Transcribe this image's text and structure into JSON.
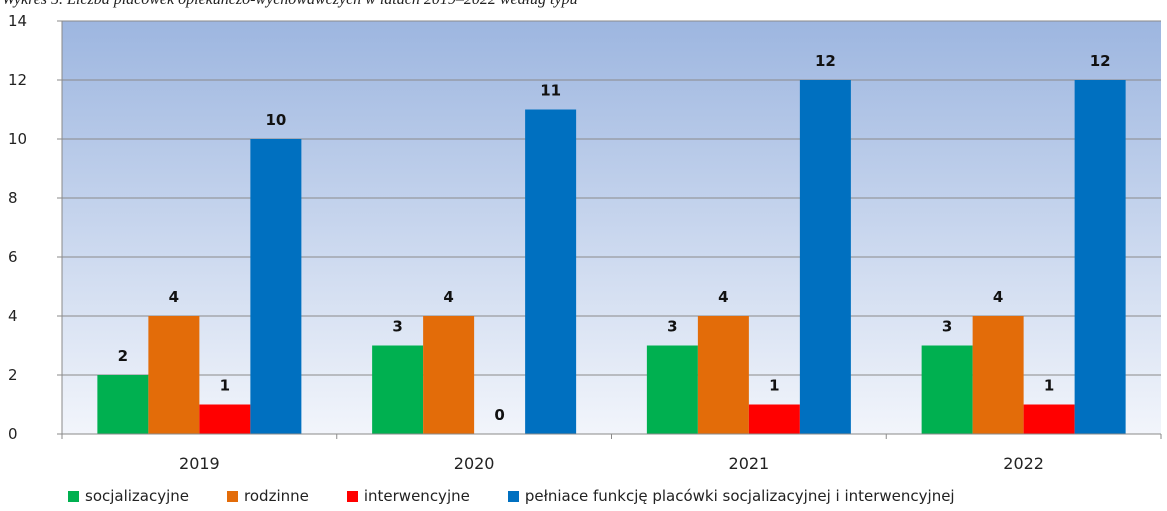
{
  "caption": "Wykres 5. Liczba placówek opiekuńczo-wychowawczych w latach 2019–2022 według typu",
  "colors": {
    "socjalizacyjne": "#00B050",
    "rodzinne": "#E36C09",
    "interwencyjne": "#FF0000",
    "pelniace": "#0070C0",
    "plot_top": "#9DB6E0",
    "plot_bottom": "#F2F5FB"
  },
  "chart_data": {
    "type": "bar",
    "title": "",
    "xlabel": "",
    "ylabel": "",
    "categories": [
      "2019",
      "2020",
      "2021",
      "2022"
    ],
    "ylim": [
      0,
      14
    ],
    "yticks": [
      0,
      2,
      4,
      6,
      8,
      10,
      12,
      14
    ],
    "grid": true,
    "legend_position": "bottom",
    "series": [
      {
        "name": "socjalizacyjne",
        "values": [
          2,
          3,
          3,
          3
        ]
      },
      {
        "name": "rodzinne",
        "values": [
          4,
          4,
          4,
          4
        ]
      },
      {
        "name": "interwencyjne",
        "values": [
          1,
          0,
          1,
          1
        ]
      },
      {
        "name": "pełniace funkcję placówki socjalizacyjnej i interwencyjnej",
        "values": [
          10,
          11,
          12,
          12
        ]
      }
    ]
  }
}
